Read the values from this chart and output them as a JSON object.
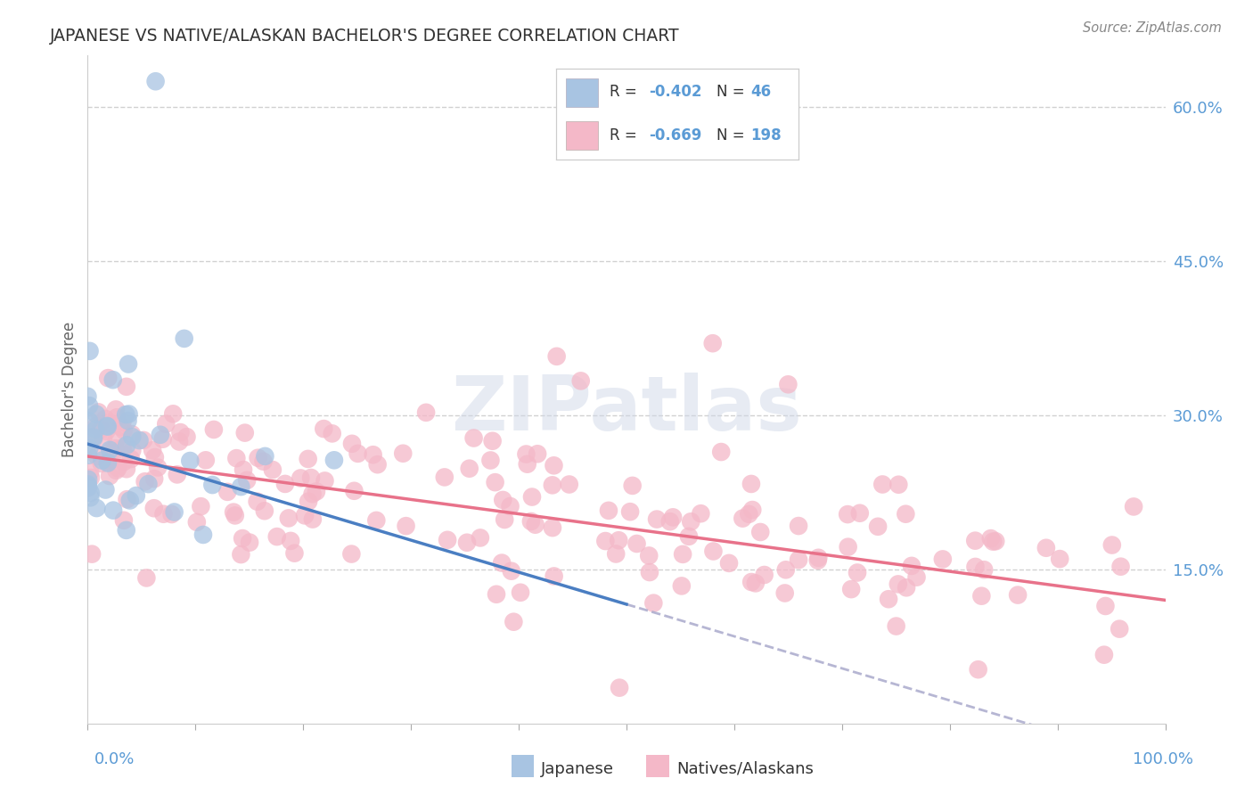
{
  "title": "JAPANESE VS NATIVE/ALASKAN BACHELOR'S DEGREE CORRELATION CHART",
  "source": "Source: ZipAtlas.com",
  "ylabel": "Bachelor's Degree",
  "ytick_labels": [
    "15.0%",
    "30.0%",
    "45.0%",
    "60.0%"
  ],
  "ytick_values": [
    0.15,
    0.3,
    0.45,
    0.6
  ],
  "watermark": "ZIPatlas",
  "blue_scatter": "#a8c4e2",
  "pink_scatter": "#f4b8c8",
  "blue_line": "#4a7ec2",
  "pink_line": "#e8728a",
  "dashed_line_color": "#aaaacc",
  "grid_color": "#cccccc",
  "title_color": "#333333",
  "axis_color": "#5b9bd5",
  "legend_color": "#5b9bd5",
  "xlim": [
    0.0,
    1.0
  ],
  "ylim": [
    0.0,
    0.65
  ],
  "jp_line_x0": 0.0,
  "jp_line_y0": 0.272,
  "jp_line_x1": 0.5,
  "jp_line_y1": 0.116,
  "na_line_x0": 0.0,
  "na_line_y0": 0.26,
  "na_line_x1": 1.0,
  "na_line_y1": 0.12,
  "jp_seed": 42,
  "na_seed": 99
}
